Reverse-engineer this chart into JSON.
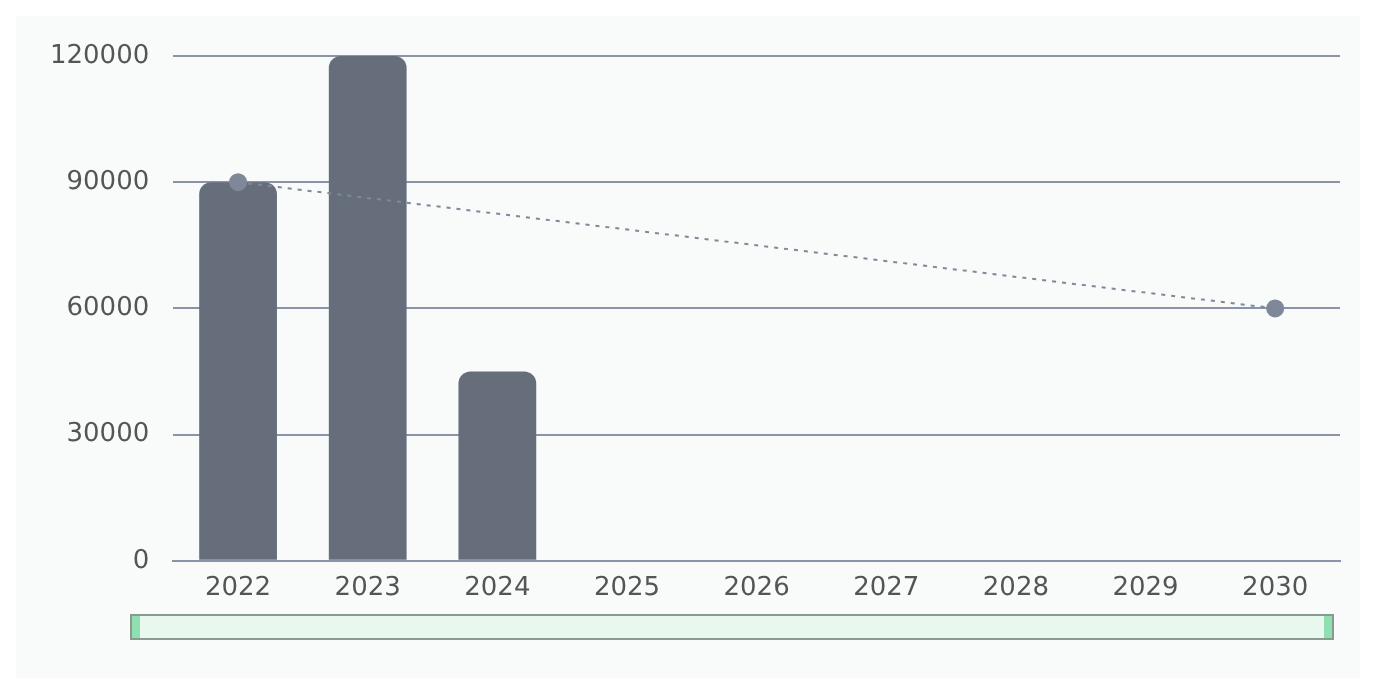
{
  "chart_data": {
    "type": "bar",
    "categories": [
      "2022",
      "2023",
      "2024",
      "2025",
      "2026",
      "2027",
      "2028",
      "2029",
      "2030"
    ],
    "series": [
      {
        "color": "#666e7c",
        "values": [
          90000,
          120000,
          45000,
          null,
          null,
          null,
          null,
          null,
          null
        ]
      },
      {
        "type": "line",
        "color": "#7f8899",
        "values": [
          90000,
          null,
          null,
          null,
          null,
          null,
          null,
          null,
          60000
        ],
        "marker": "circle",
        "line_style": "dotted"
      }
    ],
    "ylim": [
      0,
      120000
    ],
    "yticks": [
      0,
      30000,
      60000,
      90000,
      120000
    ],
    "grid": "y",
    "legend": false
  }
}
